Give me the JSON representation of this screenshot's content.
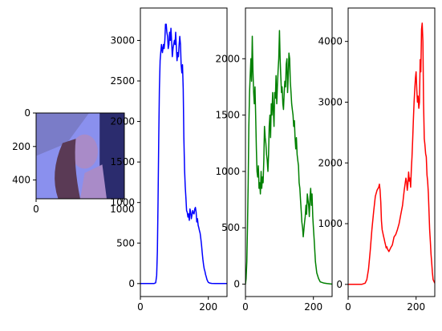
{
  "chart_data": [
    {
      "type": "image",
      "xlim": [
        0,
        1024
      ],
      "ylim": [
        512,
        0
      ],
      "xticks": [
        0,
        1000
      ],
      "yticks": [
        0,
        200,
        400
      ],
      "colors": {
        "sky": "#8a90ee",
        "dark": "#2b2c6e",
        "skin": "#a98bc8",
        "hair": "#5a3a55",
        "hat": "#7a7cc8"
      }
    },
    {
      "type": "line",
      "color": "#0000ff",
      "xlim": [
        0,
        255
      ],
      "ylim": [
        -160,
        3400
      ],
      "xticks": [
        0,
        200
      ],
      "yticks": [
        0,
        500,
        1000,
        1500,
        2000,
        2500,
        3000
      ],
      "x": [
        0,
        10,
        20,
        30,
        40,
        45,
        48,
        50,
        52,
        54,
        56,
        58,
        60,
        62,
        65,
        68,
        70,
        72,
        74,
        76,
        78,
        80,
        82,
        84,
        86,
        88,
        90,
        92,
        94,
        96,
        98,
        100,
        102,
        104,
        106,
        108,
        110,
        112,
        114,
        116,
        118,
        120,
        122,
        124,
        126,
        128,
        130,
        132,
        134,
        136,
        138,
        140,
        142,
        144,
        146,
        148,
        150,
        152,
        154,
        156,
        158,
        160,
        162,
        164,
        166,
        168,
        170,
        172,
        174,
        176,
        178,
        180,
        182,
        184,
        186,
        188,
        190,
        192,
        194,
        196,
        198,
        200,
        205,
        210,
        220,
        230,
        255
      ],
      "y": [
        0,
        0,
        0,
        0,
        0,
        10,
        100,
        400,
        1000,
        1800,
        2400,
        2750,
        2850,
        2950,
        2850,
        2950,
        2900,
        3000,
        3200,
        3200,
        3100,
        3050,
        2900,
        2950,
        3100,
        3000,
        3150,
        2980,
        2800,
        2900,
        2950,
        3000,
        2950,
        3100,
        2900,
        2750,
        2850,
        2800,
        2950,
        3050,
        2950,
        2700,
        2600,
        2700,
        2400,
        1800,
        1400,
        1200,
        1050,
        900,
        880,
        820,
        860,
        780,
        920,
        880,
        800,
        850,
        900,
        870,
        860,
        920,
        940,
        880,
        760,
        800,
        720,
        690,
        650,
        620,
        550,
        480,
        380,
        300,
        230,
        180,
        150,
        110,
        80,
        50,
        30,
        15,
        5,
        2,
        0,
        0,
        0
      ]
    },
    {
      "type": "line",
      "color": "#008000",
      "xlim": [
        0,
        255
      ],
      "ylim": [
        -110,
        2450
      ],
      "xticks": [
        0,
        200
      ],
      "yticks": [
        0,
        500,
        1000,
        1500,
        2000
      ],
      "x": [
        0,
        2,
        4,
        6,
        8,
        10,
        12,
        14,
        16,
        18,
        20,
        22,
        24,
        26,
        28,
        30,
        32,
        34,
        36,
        38,
        40,
        42,
        44,
        46,
        48,
        50,
        52,
        54,
        56,
        58,
        60,
        62,
        64,
        66,
        68,
        70,
        72,
        74,
        76,
        78,
        80,
        82,
        84,
        86,
        88,
        90,
        92,
        94,
        96,
        98,
        100,
        102,
        104,
        106,
        108,
        110,
        112,
        114,
        116,
        118,
        120,
        122,
        124,
        126,
        128,
        130,
        132,
        134,
        136,
        138,
        140,
        142,
        144,
        146,
        148,
        150,
        152,
        154,
        156,
        158,
        160,
        162,
        164,
        166,
        168,
        170,
        172,
        174,
        176,
        178,
        180,
        182,
        184,
        186,
        188,
        190,
        192,
        194,
        196,
        198,
        200,
        202,
        204,
        206,
        210,
        215,
        220,
        230,
        240,
        255
      ],
      "y": [
        0,
        50,
        200,
        500,
        900,
        1400,
        1700,
        1850,
        2000,
        1800,
        2200,
        1900,
        1700,
        1600,
        1750,
        1500,
        1200,
        1000,
        950,
        1050,
        850,
        900,
        800,
        1000,
        850,
        950,
        900,
        1100,
        1400,
        1300,
        1250,
        1150,
        1100,
        1000,
        1150,
        1400,
        1500,
        1300,
        1600,
        1500,
        1700,
        1550,
        1400,
        1700,
        1650,
        1850,
        1600,
        1750,
        1900,
        2000,
        2250,
        2000,
        1850,
        1700,
        1750,
        1600,
        1550,
        1700,
        1800,
        1750,
        1950,
        2000,
        1700,
        1850,
        2050,
        2000,
        1800,
        1700,
        1600,
        1550,
        1500,
        1400,
        1450,
        1300,
        1200,
        1300,
        1150,
        1100,
        1050,
        900,
        850,
        750,
        650,
        550,
        500,
        420,
        480,
        550,
        600,
        700,
        620,
        800,
        750,
        700,
        600,
        780,
        850,
        700,
        800,
        600,
        500,
        400,
        300,
        200,
        100,
        50,
        20,
        10,
        5,
        0
      ]
    },
    {
      "type": "line",
      "color": "#ff0000",
      "xlim": [
        0,
        255
      ],
      "ylim": [
        -200,
        4550
      ],
      "xticks": [
        0,
        200
      ],
      "yticks": [
        0,
        1000,
        2000,
        3000,
        4000
      ],
      "x": [
        0,
        20,
        40,
        50,
        55,
        60,
        65,
        70,
        75,
        80,
        85,
        90,
        92,
        94,
        96,
        98,
        100,
        102,
        104,
        106,
        108,
        110,
        112,
        114,
        116,
        118,
        120,
        125,
        130,
        135,
        140,
        145,
        150,
        155,
        160,
        165,
        170,
        172,
        174,
        176,
        178,
        180,
        182,
        184,
        186,
        188,
        190,
        192,
        194,
        196,
        198,
        200,
        202,
        204,
        206,
        208,
        210,
        212,
        214,
        216,
        218,
        220,
        222,
        224,
        226,
        228,
        230,
        232,
        234,
        236,
        238,
        240,
        242,
        244,
        246,
        248,
        250,
        255
      ],
      "y": [
        0,
        0,
        0,
        20,
        80,
        250,
        550,
        900,
        1200,
        1450,
        1550,
        1600,
        1650,
        1550,
        1350,
        1050,
        900,
        850,
        800,
        750,
        700,
        650,
        600,
        620,
        580,
        560,
        540,
        600,
        650,
        780,
        820,
        900,
        1000,
        1150,
        1300,
        1550,
        1750,
        1700,
        1550,
        1650,
        1850,
        1700,
        1750,
        1600,
        1900,
        2100,
        2400,
        2700,
        3000,
        3200,
        3400,
        3500,
        3200,
        3000,
        3100,
        2900,
        3000,
        3700,
        3500,
        4200,
        4300,
        4000,
        3000,
        2400,
        2300,
        2150,
        2100,
        1800,
        1700,
        1500,
        1200,
        900,
        700,
        500,
        350,
        200,
        80,
        20
      ]
    }
  ]
}
